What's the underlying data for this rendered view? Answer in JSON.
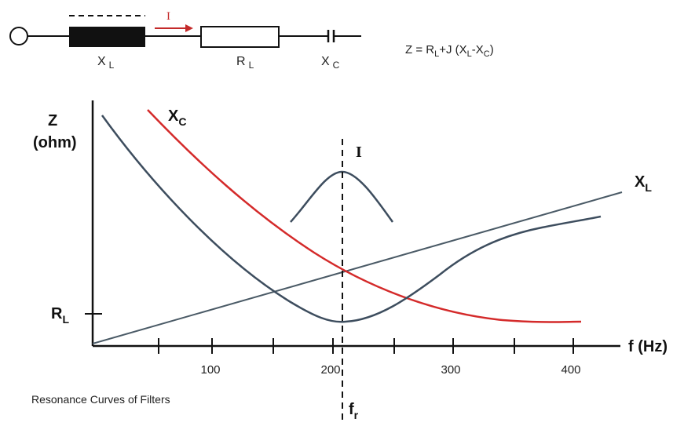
{
  "circuit": {
    "inductor_label": "X",
    "inductor_sub": "L",
    "current_label": "I",
    "resistor_label": "R",
    "resistor_sub": "L",
    "capacitor_label": "X",
    "capacitor_sub": "C",
    "formula": {
      "p1": "Z = R",
      "s1": "L",
      "p2": "+J (X",
      "s2": "L",
      "p3": "-X",
      "s3": "C",
      "p4": ")"
    }
  },
  "graph": {
    "y_label_main": "Z",
    "y_label_unit": "(ohm)",
    "y_marker_main": "R",
    "y_marker_sub": "L",
    "x_label": "f (Hz)",
    "x_ticks": [
      "100",
      "200",
      "300",
      "400"
    ],
    "xc_label_main": "X",
    "xc_label_sub": "C",
    "xl_label_main": "X",
    "xl_label_sub": "L",
    "i_label": "I",
    "fr_label_main": "f",
    "fr_label_sub": "r"
  },
  "caption": "Resonance Curves of Filters",
  "colors": {
    "xc_curve": "#d42a2a",
    "z_curve": "#3d4d5e",
    "xl_line": "#4a5a66",
    "current_arrow": "#c42a2a"
  }
}
